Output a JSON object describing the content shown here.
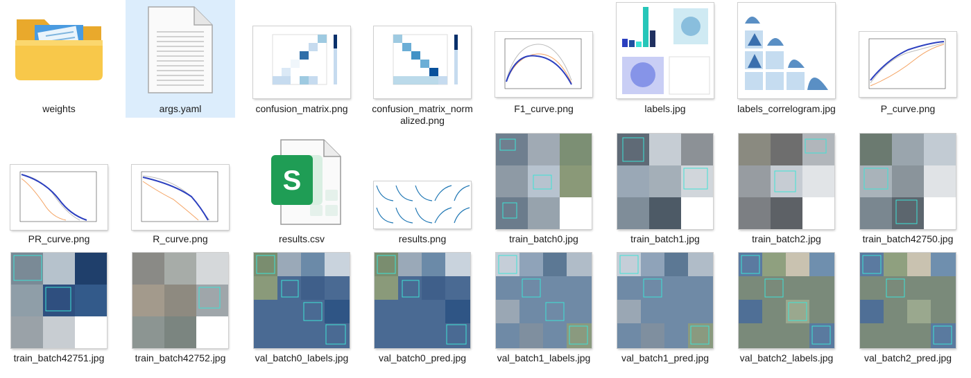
{
  "files": [
    {
      "name": "weights",
      "kind": "folder"
    },
    {
      "name": "args.yaml",
      "kind": "document",
      "selected": true
    },
    {
      "name": "confusion_matrix.png",
      "kind": "confmat"
    },
    {
      "name": "confusion_matrix_normalized.png",
      "kind": "confmat"
    },
    {
      "name": "F1_curve.png",
      "kind": "curve"
    },
    {
      "name": "labels.jpg",
      "kind": "labels"
    },
    {
      "name": "labels_correlogram.jpg",
      "kind": "correlogram"
    },
    {
      "name": "P_curve.png",
      "kind": "curve"
    },
    {
      "name": "PR_curve.png",
      "kind": "curve"
    },
    {
      "name": "R_curve.png",
      "kind": "curve"
    },
    {
      "name": "results.csv",
      "kind": "spreadsheet",
      "icon_letter": "S"
    },
    {
      "name": "results.png",
      "kind": "results"
    },
    {
      "name": "train_batch0.jpg",
      "kind": "mosaic"
    },
    {
      "name": "train_batch1.jpg",
      "kind": "mosaic"
    },
    {
      "name": "train_batch2.jpg",
      "kind": "mosaic"
    },
    {
      "name": "train_batch42750.jpg",
      "kind": "mosaic"
    },
    {
      "name": "train_batch42751.jpg",
      "kind": "mosaic"
    },
    {
      "name": "train_batch42752.jpg",
      "kind": "mosaic"
    },
    {
      "name": "val_batch0_labels.jpg",
      "kind": "mosaic"
    },
    {
      "name": "val_batch0_pred.jpg",
      "kind": "mosaic"
    },
    {
      "name": "val_batch1_labels.jpg",
      "kind": "mosaic"
    },
    {
      "name": "val_batch1_pred.jpg",
      "kind": "mosaic"
    },
    {
      "name": "val_batch2_labels.jpg",
      "kind": "mosaic"
    },
    {
      "name": "val_batch2_pred.jpg",
      "kind": "mosaic"
    }
  ],
  "colors": {
    "selection": "#dcedfc",
    "folder": "#f5c242",
    "spreadsheet": "#1f9d55",
    "chart_blue": "#2b3fbf",
    "box_cyan": "#3ee3d6"
  }
}
